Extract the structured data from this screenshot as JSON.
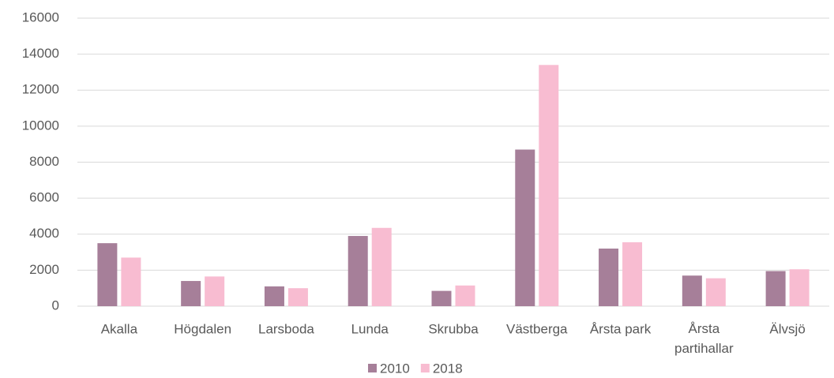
{
  "chart_data": {
    "type": "bar",
    "categories": [
      "Akalla",
      "Högdalen",
      "Larsboda",
      "Lunda",
      "Skrubba",
      "Västberga",
      "Årsta park",
      "Årsta partihallar",
      "Älvsjö"
    ],
    "series": [
      {
        "name": "2010",
        "color": "#a67f99",
        "values": [
          3500,
          1400,
          1100,
          3900,
          850,
          8700,
          3200,
          1700,
          1950
        ]
      },
      {
        "name": "2018",
        "color": "#f8bcd1",
        "values": [
          2700,
          1650,
          1000,
          4350,
          1150,
          13400,
          3550,
          1550,
          2050
        ]
      }
    ],
    "ylim": [
      0,
      16000
    ],
    "yticks": [
      0,
      2000,
      4000,
      6000,
      8000,
      10000,
      12000,
      14000,
      16000
    ],
    "grid": true,
    "legend": "bottom"
  }
}
